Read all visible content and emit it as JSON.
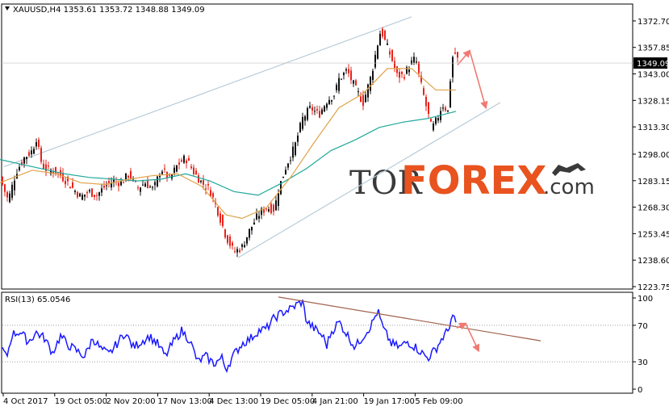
{
  "chart_data": [
    {
      "type": "candlestick",
      "header": {
        "symbol": "XAUUSD,H4",
        "open": "1353.61",
        "high": "1353.72",
        "low": "1348.88",
        "close": "1349.09"
      },
      "current_price_label": "1349.09",
      "ylim": [
        1223.75,
        1379.0
      ],
      "y_ticks": [
        "1372.70",
        "1357.85",
        "1343.00",
        "1328.15",
        "1313.30",
        "1298.00",
        "1283.15",
        "1268.30",
        "1253.45",
        "1238.60",
        "1223.75"
      ],
      "y_tick_values": [
        1372.7,
        1357.85,
        1343.0,
        1328.15,
        1313.3,
        1298.0,
        1283.15,
        1268.3,
        1253.45,
        1238.6,
        1223.75
      ],
      "x_ticks": [
        "4 Oct 2017",
        "19 Oct 05:00",
        "2 Nov 20:00",
        "17 Nov 13:00",
        "4 Dec 13:00",
        "19 Dec 05:00",
        "4 Jan 21:00",
        "19 Jan 17:00",
        "5 Feb 09:00"
      ],
      "close_path": [
        [
          0,
          1285
        ],
        [
          10,
          1272
        ],
        [
          20,
          1288
        ],
        [
          30,
          1296
        ],
        [
          40,
          1300
        ],
        [
          45,
          1307
        ],
        [
          50,
          1295
        ],
        [
          55,
          1290
        ],
        [
          70,
          1288
        ],
        [
          80,
          1284
        ],
        [
          90,
          1279
        ],
        [
          100,
          1274
        ],
        [
          110,
          1277
        ],
        [
          120,
          1275
        ],
        [
          130,
          1280
        ],
        [
          140,
          1283
        ],
        [
          150,
          1282
        ],
        [
          160,
          1287
        ],
        [
          170,
          1279
        ],
        [
          180,
          1282
        ],
        [
          190,
          1278
        ],
        [
          200,
          1290
        ],
        [
          210,
          1284
        ],
        [
          220,
          1292
        ],
        [
          230,
          1296
        ],
        [
          240,
          1288
        ],
        [
          250,
          1282
        ],
        [
          260,
          1278
        ],
        [
          270,
          1266
        ],
        [
          280,
          1252
        ],
        [
          290,
          1243
        ],
        [
          300,
          1246
        ],
        [
          310,
          1256
        ],
        [
          320,
          1264
        ],
        [
          330,
          1268
        ],
        [
          340,
          1267
        ],
        [
          345,
          1278
        ],
        [
          355,
          1292
        ],
        [
          365,
          1302
        ],
        [
          375,
          1318
        ],
        [
          385,
          1324
        ],
        [
          395,
          1320
        ],
        [
          405,
          1328
        ],
        [
          415,
          1332
        ],
        [
          420,
          1340
        ],
        [
          430,
          1345
        ],
        [
          440,
          1335
        ],
        [
          450,
          1327
        ],
        [
          460,
          1342
        ],
        [
          467,
          1358
        ],
        [
          472,
          1368
        ],
        [
          478,
          1360
        ],
        [
          485,
          1352
        ],
        [
          492,
          1342
        ],
        [
          500,
          1342
        ],
        [
          508,
          1348
        ],
        [
          515,
          1352
        ],
        [
          520,
          1340
        ],
        [
          528,
          1325
        ],
        [
          535,
          1312
        ],
        [
          542,
          1318
        ],
        [
          548,
          1326
        ],
        [
          555,
          1322
        ],
        [
          560,
          1352
        ],
        [
          565,
          1355
        ],
        [
          568,
          1349.09
        ]
      ],
      "ma_fast": [
        [
          0,
          1282
        ],
        [
          40,
          1289
        ],
        [
          70,
          1287
        ],
        [
          100,
          1282
        ],
        [
          130,
          1281
        ],
        [
          160,
          1284
        ],
        [
          190,
          1286
        ],
        [
          220,
          1287
        ],
        [
          250,
          1280
        ],
        [
          280,
          1264
        ],
        [
          300,
          1262
        ],
        [
          330,
          1268
        ],
        [
          360,
          1285
        ],
        [
          390,
          1305
        ],
        [
          420,
          1324
        ],
        [
          450,
          1332
        ],
        [
          480,
          1346
        ],
        [
          510,
          1346
        ],
        [
          540,
          1334
        ],
        [
          565,
          1334
        ]
      ],
      "ma_slow": [
        [
          0,
          1295
        ],
        [
          40,
          1291
        ],
        [
          80,
          1287
        ],
        [
          110,
          1285
        ],
        [
          140,
          1284
        ],
        [
          170,
          1283
        ],
        [
          200,
          1284
        ],
        [
          230,
          1287
        ],
        [
          260,
          1283
        ],
        [
          290,
          1277
        ],
        [
          320,
          1275
        ],
        [
          350,
          1282
        ],
        [
          380,
          1290
        ],
        [
          410,
          1300
        ],
        [
          440,
          1306
        ],
        [
          470,
          1313
        ],
        [
          500,
          1316
        ],
        [
          530,
          1318
        ],
        [
          565,
          1322
        ]
      ],
      "channel_upper": [
        [
          5,
          1291
        ],
        [
          510,
          1375
        ]
      ],
      "channel_lower": [
        [
          295,
          1240
        ],
        [
          620,
          1327
        ]
      ],
      "forecast_arrows": [
        [
          [
            567,
            1348
          ],
          [
            582,
            1356
          ],
          [
            602,
            1324
          ]
        ]
      ]
    },
    {
      "type": "line",
      "label": "RSI(13) 65.0546",
      "ylim": [
        0,
        100
      ],
      "y_ticks": [
        "100",
        "70",
        "30",
        "0"
      ],
      "y_tick_values": [
        100,
        70,
        30,
        0
      ],
      "levels": [
        70,
        30
      ],
      "series": [
        {
          "values_path": [
            [
              0,
              50
            ],
            [
              8,
              34
            ],
            [
              15,
              60
            ],
            [
              25,
              63
            ],
            [
              35,
              52
            ],
            [
              45,
              62
            ],
            [
              55,
              56
            ],
            [
              65,
              40
            ],
            [
              75,
              58
            ],
            [
              85,
              48
            ],
            [
              95,
              42
            ],
            [
              105,
              36
            ],
            [
              115,
              56
            ],
            [
              125,
              44
            ],
            [
              135,
              38
            ],
            [
              145,
              50
            ],
            [
              155,
              62
            ],
            [
              165,
              46
            ],
            [
              175,
              52
            ],
            [
              185,
              58
            ],
            [
              195,
              50
            ],
            [
              205,
              36
            ],
            [
              215,
              52
            ],
            [
              225,
              64
            ],
            [
              235,
              54
            ],
            [
              245,
              30
            ],
            [
              255,
              36
            ],
            [
              265,
              28
            ],
            [
              275,
              34
            ],
            [
              280,
              22
            ],
            [
              290,
              38
            ],
            [
              300,
              50
            ],
            [
              310,
              55
            ],
            [
              320,
              64
            ],
            [
              330,
              66
            ],
            [
              340,
              78
            ],
            [
              350,
              84
            ],
            [
              360,
              88
            ],
            [
              370,
              94
            ],
            [
              375,
              96
            ],
            [
              380,
              74
            ],
            [
              390,
              66
            ],
            [
              400,
              58
            ],
            [
              405,
              48
            ],
            [
              410,
              62
            ],
            [
              415,
              68
            ],
            [
              420,
              74
            ],
            [
              430,
              60
            ],
            [
              440,
              46
            ],
            [
              450,
              58
            ],
            [
              460,
              70
            ],
            [
              468,
              86
            ],
            [
              475,
              66
            ],
            [
              485,
              50
            ],
            [
              495,
              46
            ],
            [
              505,
              52
            ],
            [
              515,
              46
            ],
            [
              525,
              38
            ],
            [
              530,
              34
            ],
            [
              540,
              44
            ],
            [
              548,
              56
            ],
            [
              555,
              64
            ],
            [
              560,
              80
            ],
            [
              565,
              72
            ]
          ]
        }
      ],
      "trendline": [
        [
          345,
          101
        ],
        [
          670,
          53
        ]
      ],
      "forecast_arrows": [
        [
          [
            566,
            67
          ],
          [
            577,
            72
          ],
          [
            593,
            42
          ]
        ]
      ]
    }
  ],
  "watermark": {
    "tor": "TOR",
    "forex": "FOREX",
    "com": ".com"
  },
  "colors": {
    "bull_candle": "#111111",
    "bear_candle": "#e8231b",
    "ma_fast": "#e0a24a",
    "ma_slow": "#1fa89a",
    "channel": "#b8ccd8",
    "forecast_arrow": "#f07a72",
    "rsi_line": "#1a1aff",
    "rsi_trendline": "#a0604a",
    "watermark_orange": "#e8531f"
  }
}
